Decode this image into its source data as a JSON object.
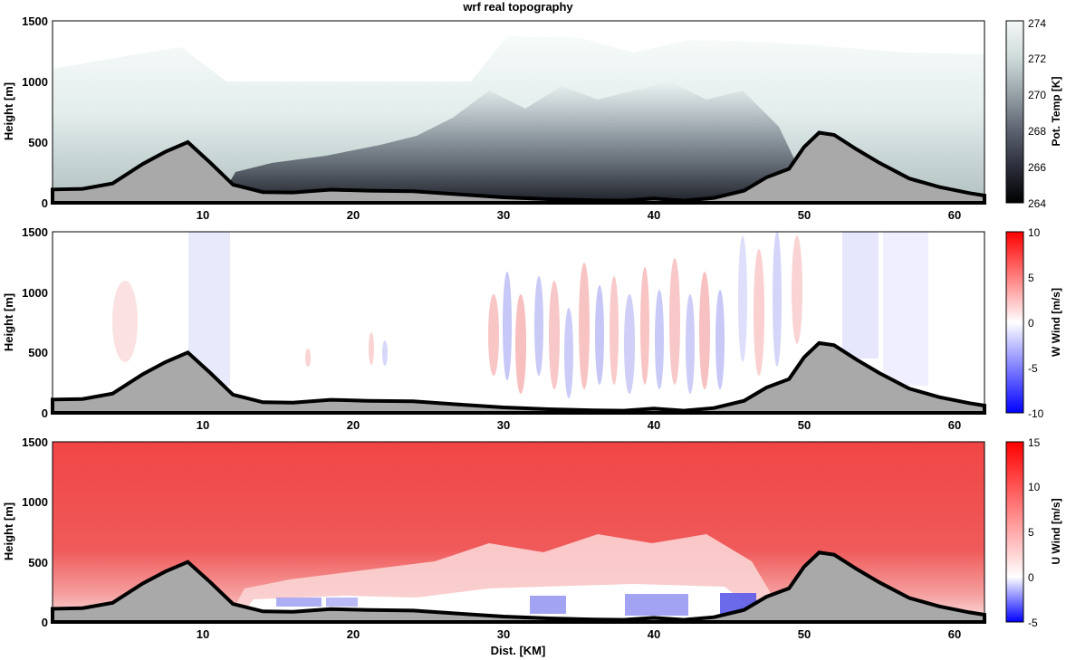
{
  "figure": {
    "title": "wrf real topography",
    "xlabel": "Dist. [KM]"
  },
  "chart_data": [
    {
      "type": "heatmap",
      "panel": "top",
      "title": "wrf real topography",
      "ylabel": "Height [m]",
      "xlim": [
        0,
        62
      ],
      "ylim": [
        0,
        1500
      ],
      "x_ticks": [
        "10",
        "20",
        "30",
        "40",
        "50",
        "60"
      ],
      "y_ticks": [
        "0",
        "500",
        "1000",
        "1500"
      ],
      "colorbar": {
        "label": "Pot. Temp [K]",
        "range": [
          264,
          274
        ],
        "ticks": [
          "264",
          "266",
          "268",
          "270",
          "272",
          "274"
        ],
        "colors": [
          "#000000",
          "#2c2f3b",
          "#5d6370",
          "#98a3a8",
          "#cfdcdb",
          "#f4f8f7"
        ]
      }
    },
    {
      "type": "heatmap",
      "panel": "middle",
      "ylabel": "Height [m]",
      "xlim": [
        0,
        62
      ],
      "ylim": [
        0,
        1500
      ],
      "x_ticks": [
        "10",
        "20",
        "30",
        "40",
        "50",
        "60"
      ],
      "y_ticks": [
        "0",
        "500",
        "1000",
        "1500"
      ],
      "colorbar": {
        "label": "W Wind [m/s]",
        "range": [
          -10,
          10
        ],
        "ticks": [
          "-10",
          "-5",
          "0",
          "5",
          "10"
        ],
        "colors": [
          "#0000ff",
          "#ffffff",
          "#ff0000"
        ]
      }
    },
    {
      "type": "heatmap",
      "panel": "bottom",
      "ylabel": "Height [m]",
      "xlabel": "Dist. [KM]",
      "xlim": [
        0,
        62
      ],
      "ylim": [
        0,
        1500
      ],
      "x_ticks": [
        "10",
        "20",
        "30",
        "40",
        "50",
        "60"
      ],
      "y_ticks": [
        "0",
        "500",
        "1000",
        "1500"
      ],
      "colorbar": {
        "label": "U Wind [m/s]",
        "range": [
          -5,
          15
        ],
        "ticks": [
          "-5",
          "0",
          "5",
          "10",
          "15"
        ],
        "colors": [
          "#0000ff",
          "#ffffff",
          "#ff0000"
        ]
      }
    }
  ],
  "terrain": {
    "color": "#a9a9a9",
    "x_km": [
      0,
      2,
      4,
      6,
      7.5,
      9,
      10.5,
      12,
      14,
      16,
      18.5,
      21,
      24,
      27,
      30,
      33,
      36,
      38,
      40,
      42,
      44,
      46,
      47.5,
      49,
      50,
      51,
      52,
      53.5,
      55,
      57,
      59,
      61,
      62
    ],
    "height_m": [
      110,
      115,
      160,
      320,
      420,
      500,
      330,
      150,
      88,
      85,
      108,
      100,
      95,
      70,
      45,
      30,
      20,
      18,
      35,
      18,
      40,
      100,
      210,
      280,
      460,
      578,
      560,
      440,
      330,
      200,
      130,
      80,
      60
    ]
  }
}
